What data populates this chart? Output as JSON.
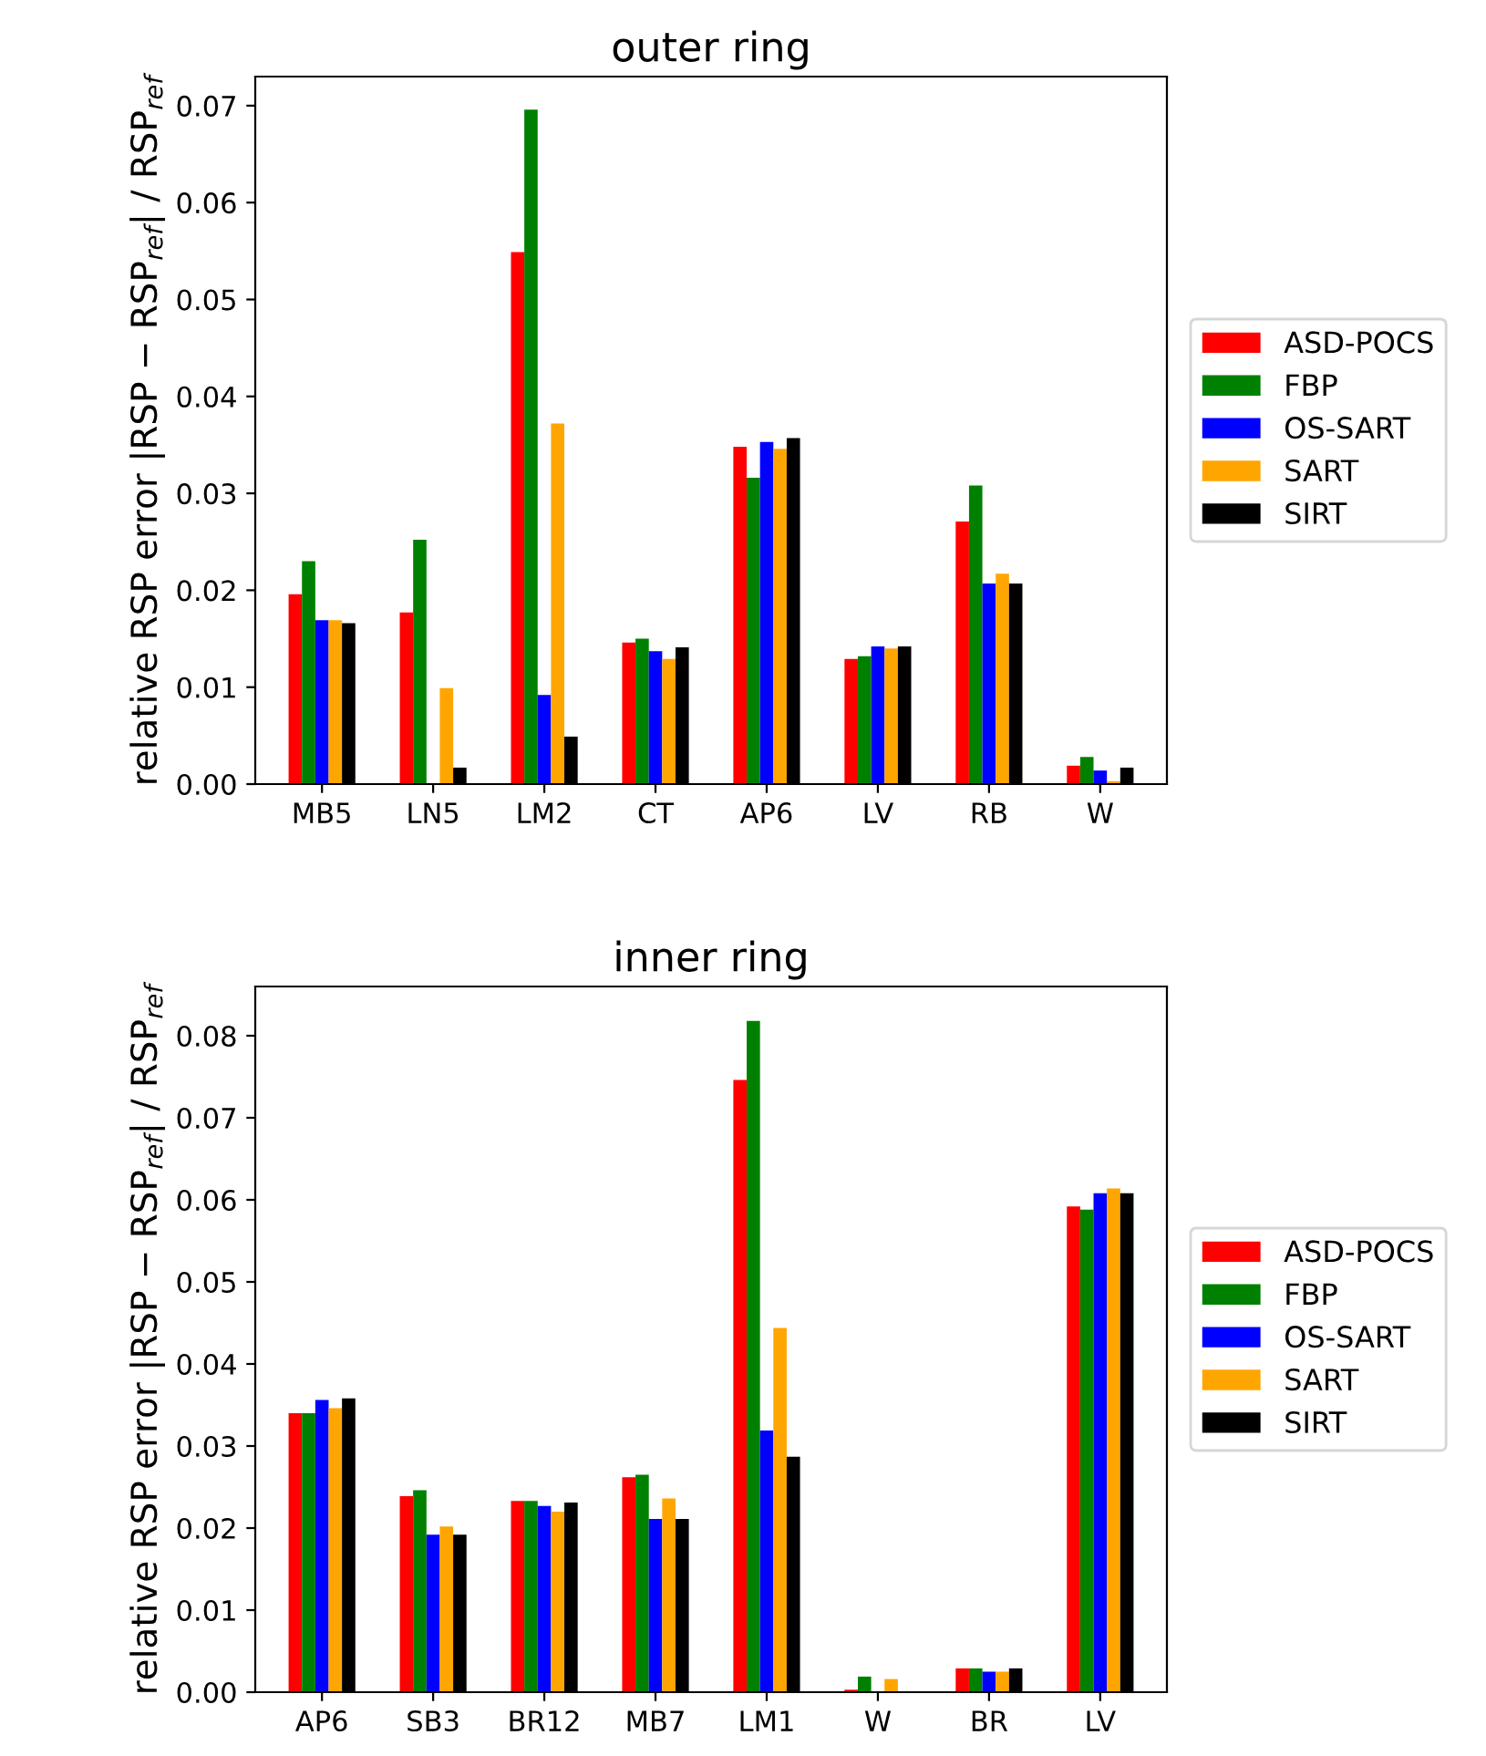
{
  "chart_data": [
    {
      "type": "bar",
      "title": "outer ring",
      "ylabel": "relative RSP error |RSP − RSP$_{ref}$| / RSP$_{ref}$",
      "categories": [
        "MB5",
        "LN5",
        "LM2",
        "CT",
        "AP6",
        "LV",
        "RB",
        "W"
      ],
      "ylim": [
        0,
        0.073
      ],
      "yticks": [
        {
          "value": 0,
          "label": "0.00"
        },
        0.01,
        0.02,
        0.03,
        0.04,
        0.05,
        0.06,
        0.07
      ],
      "grid": false,
      "legend": "right",
      "series": [
        {
          "name": "ASD-POCS",
          "color": "#ff0000",
          "values": [
            0.0196,
            0.0177,
            0.0549,
            0.0146,
            0.0348,
            0.0129,
            0.0271,
            0.0019
          ]
        },
        {
          "name": "FBP",
          "color": "#008000",
          "values": [
            0.023,
            0.0252,
            0.0696,
            0.015,
            0.0316,
            0.0132,
            0.0308,
            0.0028
          ]
        },
        {
          "name": "OS-SART",
          "color": "#0000ff",
          "values": [
            0.0169,
            null,
            0.0092,
            0.0137,
            0.0353,
            0.0142,
            0.0207,
            0.0014
          ]
        },
        {
          "name": "SART",
          "color": "#ffa500",
          "values": [
            0.0169,
            0.0099,
            0.0372,
            0.0129,
            0.0346,
            0.014,
            0.0217,
            0.0003
          ]
        },
        {
          "name": "SIRT",
          "color": "#000000",
          "values": [
            0.0166,
            0.0017,
            0.0049,
            0.0141,
            0.0357,
            0.0142,
            0.0207,
            0.0017
          ]
        }
      ]
    },
    {
      "type": "bar",
      "title": "inner ring",
      "ylabel": "relative RSP error |RSP − RSP$_{ref}$| / RSP$_{ref}$",
      "categories": [
        "AP6",
        "SB3",
        "BR12",
        "MB7",
        "LM1",
        "W",
        "BR",
        "LV"
      ],
      "ylim": [
        0,
        0.086
      ],
      "yticks": [
        {
          "value": 0,
          "label": "0.00"
        },
        0.01,
        0.02,
        0.03,
        0.04,
        0.05,
        0.06,
        0.07,
        0.08
      ],
      "grid": false,
      "legend": "right",
      "series": [
        {
          "name": "ASD-POCS",
          "color": "#ff0000",
          "values": [
            0.034,
            0.0239,
            0.0233,
            0.0262,
            0.0746,
            0.0003,
            0.0029,
            0.0592
          ]
        },
        {
          "name": "FBP",
          "color": "#008000",
          "values": [
            0.034,
            0.0246,
            0.0233,
            0.0265,
            0.0818,
            0.0019,
            0.0029,
            0.0588
          ]
        },
        {
          "name": "OS-SART",
          "color": "#0000ff",
          "values": [
            0.0356,
            0.0192,
            0.0227,
            0.0211,
            0.0319,
            null,
            0.0025,
            0.0608
          ]
        },
        {
          "name": "SART",
          "color": "#ffa500",
          "values": [
            0.0346,
            0.0202,
            0.022,
            0.0236,
            0.0444,
            0.0016,
            0.0025,
            0.0614
          ]
        },
        {
          "name": "SIRT",
          "color": "#000000",
          "values": [
            0.0358,
            0.0192,
            0.0231,
            0.0211,
            0.0287,
            null,
            0.0029,
            0.0608
          ]
        }
      ]
    }
  ]
}
